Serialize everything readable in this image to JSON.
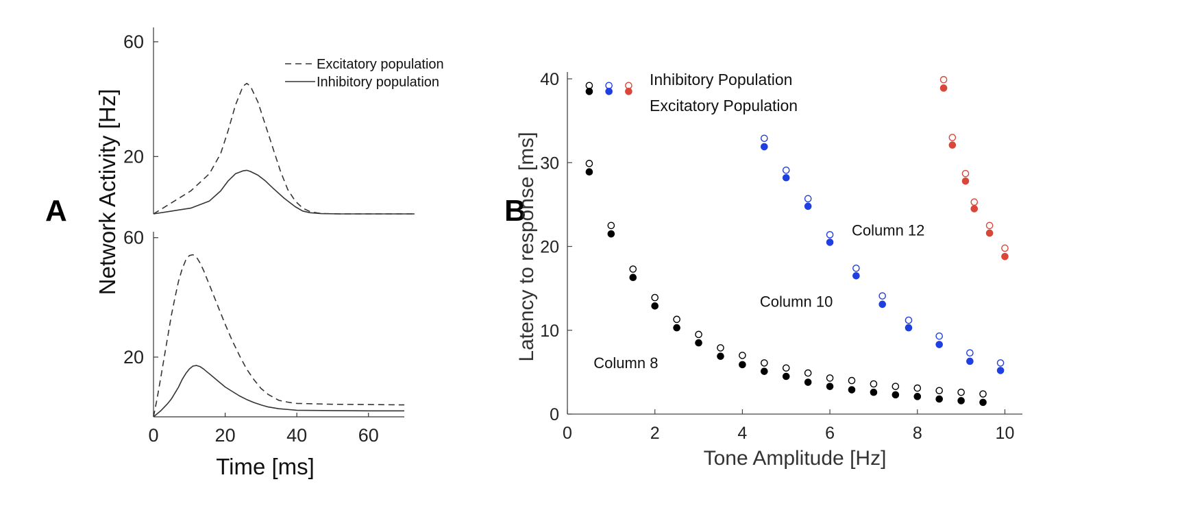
{
  "panel_a_label": "A",
  "panel_b_label": "B",
  "chart_data": [
    {
      "panel": "A (top)",
      "type": "line",
      "xlim": [
        0,
        70
      ],
      "ylim": [
        0,
        65
      ],
      "yticks": [
        60,
        20
      ],
      "ytick_labels": [
        "60",
        "20"
      ],
      "legend": [
        "Excitatory population",
        "Inhibitory population"
      ],
      "legend_position": "top-right",
      "series": [
        {
          "name": "Excitatory population",
          "style": "dashed",
          "x": [
            0,
            5,
            10,
            15,
            18,
            20,
            22,
            24,
            25,
            26,
            28,
            30,
            32,
            34,
            36,
            38,
            40,
            42,
            44,
            46,
            50,
            60,
            70
          ],
          "y": [
            0,
            4,
            8,
            14,
            21,
            29,
            38,
            44.5,
            45.5,
            44.5,
            39,
            31,
            23,
            15,
            8.5,
            4.5,
            2,
            0.8,
            0.3,
            0.1,
            0,
            0,
            0
          ]
        },
        {
          "name": "Inhibitory population",
          "style": "solid",
          "x": [
            0,
            5,
            10,
            15,
            18,
            20,
            22,
            24,
            25,
            26,
            28,
            30,
            32,
            35,
            38,
            40,
            42,
            45,
            50,
            60,
            70
          ],
          "y": [
            0,
            1,
            2,
            4.5,
            8,
            11.5,
            14,
            15,
            15.2,
            14.8,
            13.5,
            11.5,
            9,
            5.5,
            2.5,
            1,
            0.4,
            0.1,
            0,
            0,
            0
          ]
        }
      ]
    },
    {
      "panel": "A (bottom)",
      "type": "line",
      "xlim": [
        0,
        70
      ],
      "ylim": [
        0,
        62
      ],
      "yticks": [
        60,
        20
      ],
      "ytick_labels": [
        "60",
        "20"
      ],
      "xticks": [
        0,
        20,
        40,
        60
      ],
      "xtick_labels": [
        "0",
        "20",
        "40",
        "60"
      ],
      "xlabel": "Time [ms]",
      "shared_ylabel": "Network Activity [Hz]",
      "series": [
        {
          "name": "Excitatory population",
          "style": "dashed",
          "x": [
            0,
            1,
            2,
            3,
            4,
            5,
            6,
            7,
            8,
            9,
            10,
            11,
            12,
            13,
            14,
            15,
            16,
            18,
            20,
            22,
            24,
            26,
            28,
            30,
            32,
            35,
            38,
            40,
            50,
            60,
            70
          ],
          "y": [
            0,
            6,
            13,
            20,
            27,
            34,
            40,
            45.5,
            49.5,
            52.5,
            54,
            54.3,
            53.5,
            51.5,
            49,
            46,
            43,
            37,
            31,
            25.5,
            20.5,
            16,
            12.5,
            9.5,
            7.5,
            5.5,
            4.8,
            4.5,
            4.2,
            4.1,
            4
          ]
        },
        {
          "name": "Inhibitory population",
          "style": "solid",
          "x": [
            0,
            2,
            4,
            5,
            6,
            7,
            8,
            9,
            10,
            11,
            12,
            13,
            14,
            15,
            16,
            18,
            20,
            22,
            24,
            26,
            28,
            30,
            32,
            35,
            38,
            40,
            50,
            60,
            70
          ],
          "y": [
            0,
            2,
            4.5,
            6,
            8,
            10,
            12.5,
            14.5,
            16,
            17,
            17.2,
            16.8,
            16,
            15,
            14,
            12,
            10,
            8.5,
            7,
            5.8,
            4.8,
            4,
            3.3,
            2.7,
            2.4,
            2.2,
            2.1,
            2,
            2
          ]
        }
      ]
    },
    {
      "panel": "B",
      "type": "scatter",
      "xlabel": "Tone Amplitude [Hz]",
      "ylabel": "Latency to response [ms]",
      "xlim": [
        0,
        10.4
      ],
      "ylim": [
        0,
        40
      ],
      "xticks": [
        0,
        2,
        4,
        6,
        8,
        10
      ],
      "xtick_labels": [
        "0",
        "2",
        "4",
        "6",
        "8",
        "10"
      ],
      "yticks": [
        0,
        10,
        20,
        30,
        40
      ],
      "ytick_labels": [
        "0",
        "10",
        "20",
        "30",
        "40"
      ],
      "legend": [
        "Inhibitory Population",
        "Excitatory Population"
      ],
      "legend_position": "top-left",
      "annotations": [
        {
          "text": "Column 8",
          "x": 0.6,
          "y": 5.5
        },
        {
          "text": "Column 10",
          "x": 4.4,
          "y": 12.8
        },
        {
          "text": "Column 12",
          "x": 6.5,
          "y": 21.3
        }
      ],
      "series": [
        {
          "name": "Column 8",
          "color": "#000000",
          "x": [
            0.5,
            1.0,
            1.5,
            2.0,
            2.5,
            3.0,
            3.5,
            4.0,
            4.5,
            5.0,
            5.5,
            6.0,
            6.5,
            7.0,
            7.5,
            8.0,
            8.5,
            9.0,
            9.5
          ],
          "inhibitory": [
            39.2,
            29.9,
            22.5,
            17.3,
            13.9,
            11.3,
            9.5,
            7.9,
            7.0,
            6.1,
            5.5,
            4.9,
            4.3,
            4.0,
            3.6,
            3.3,
            3.1,
            2.8,
            2.6,
            2.4
          ],
          "inhibitory_x": [
            0.5,
            0.5,
            1.0,
            1.5,
            2.0,
            2.5,
            3.0,
            3.5,
            4.0,
            4.5,
            5.0,
            5.5,
            6.0,
            6.5,
            7.0,
            7.5,
            8.0,
            8.5,
            9.0,
            9.5
          ],
          "excitatory": [
            38.5,
            28.9,
            21.5,
            16.3,
            12.9,
            10.3,
            8.5,
            6.9,
            5.9,
            5.1,
            4.5,
            3.8,
            3.3,
            2.9,
            2.6,
            2.3,
            2.1,
            1.8,
            1.6,
            1.4
          ],
          "excitatory_x": [
            0.5,
            0.5,
            1.0,
            1.5,
            2.0,
            2.5,
            3.0,
            3.5,
            4.0,
            4.5,
            5.0,
            5.5,
            6.0,
            6.5,
            7.0,
            7.5,
            8.0,
            8.5,
            9.0,
            9.5
          ]
        },
        {
          "name": "Column 10",
          "color": "#1f3fe0",
          "inhibitory_x": [
            0.95,
            4.5,
            5.0,
            5.5,
            6.0,
            6.6,
            7.2,
            7.8,
            8.5,
            9.2,
            9.9
          ],
          "inhibitory": [
            39.2,
            32.9,
            29.1,
            25.7,
            21.4,
            17.4,
            14.1,
            11.2,
            9.3,
            7.3,
            6.1
          ],
          "excitatory_x": [
            0.95,
            4.5,
            5.0,
            5.5,
            6.0,
            6.6,
            7.2,
            7.8,
            8.5,
            9.2,
            9.9
          ],
          "excitatory": [
            38.5,
            31.9,
            28.2,
            24.8,
            20.5,
            16.5,
            13.1,
            10.3,
            8.3,
            6.3,
            5.2
          ]
        },
        {
          "name": "Column 12",
          "color": "#d9463a",
          "inhibitory_x": [
            1.4,
            8.6,
            8.8,
            9.1,
            9.3,
            9.65,
            10.0
          ],
          "inhibitory": [
            39.2,
            39.9,
            33.0,
            28.7,
            25.3,
            22.5,
            19.8
          ],
          "excitatory_x": [
            1.4,
            8.6,
            8.8,
            9.1,
            9.3,
            9.65,
            10.0
          ],
          "excitatory": [
            38.5,
            38.9,
            32.1,
            27.8,
            24.5,
            21.6,
            18.8
          ]
        }
      ]
    }
  ]
}
